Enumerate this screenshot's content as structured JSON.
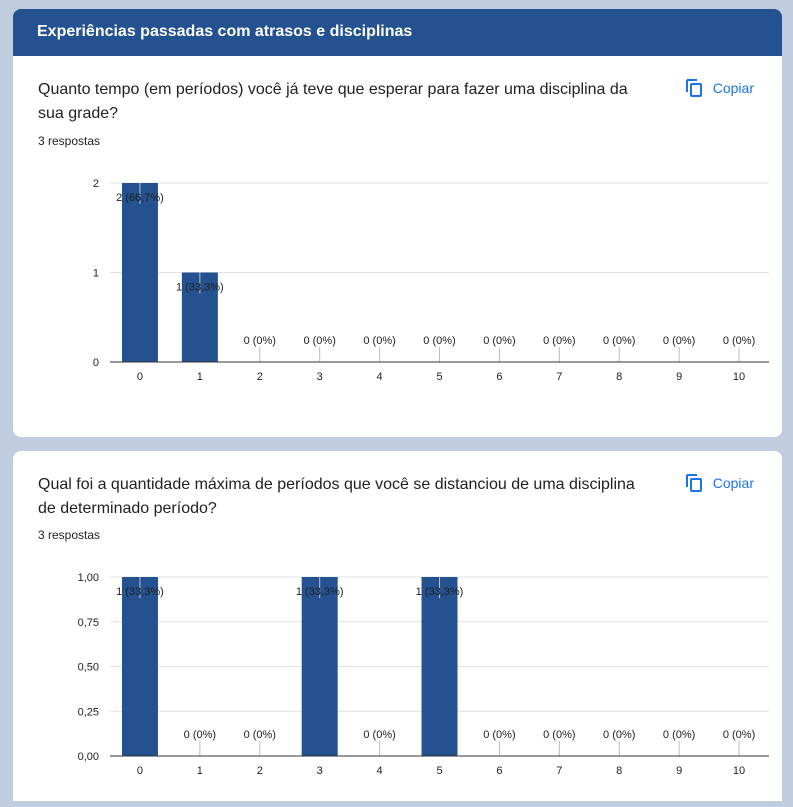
{
  "section": {
    "title": "Experiências passadas com atrasos e disciplinas"
  },
  "questions": [
    {
      "text": "Quanto tempo (em períodos) você já teve que esperar para fazer uma disciplina da sua grade?",
      "responses": "3 respostas",
      "copy_label": "Copiar",
      "copy_icon": "copy-icon"
    },
    {
      "text": "Qual foi a quantidade máxima de períodos que você se distanciou de uma disciplina de determinado período?",
      "responses": "3 respostas",
      "copy_label": "Copiar",
      "copy_icon": "copy-icon"
    }
  ],
  "colors": {
    "bar": "#24518f",
    "header": "#24518f",
    "accent": "#1a73e8"
  },
  "chart_data": [
    {
      "type": "bar",
      "categories": [
        "0",
        "1",
        "2",
        "3",
        "4",
        "5",
        "6",
        "7",
        "8",
        "9",
        "10"
      ],
      "values": [
        2,
        1,
        0,
        0,
        0,
        0,
        0,
        0,
        0,
        0,
        0
      ],
      "labels": [
        "2 (66,7%)",
        "1 (33,3%)",
        "0 (0%)",
        "0 (0%)",
        "0 (0%)",
        "0 (0%)",
        "0 (0%)",
        "0 (0%)",
        "0 (0%)",
        "0 (0%)",
        "0 (0%)"
      ],
      "yticks": [
        "0",
        "1",
        "2"
      ],
      "ylim": [
        0,
        2
      ],
      "grid": true
    },
    {
      "type": "bar",
      "categories": [
        "0",
        "1",
        "2",
        "3",
        "4",
        "5",
        "6",
        "7",
        "8",
        "9",
        "10"
      ],
      "values": [
        1,
        0,
        0,
        1,
        0,
        1,
        0,
        0,
        0,
        0,
        0
      ],
      "labels": [
        "1 (33,3%)",
        "0 (0%)",
        "0 (0%)",
        "1 (33,3%)",
        "0 (0%)",
        "1 (33,3%)",
        "0 (0%)",
        "0 (0%)",
        "0 (0%)",
        "0 (0%)",
        "0 (0%)"
      ],
      "yticks": [
        "0,00",
        "0,25",
        "0,50",
        "0,75",
        "1,00"
      ],
      "ylim": [
        0,
        1
      ],
      "grid": true
    }
  ]
}
